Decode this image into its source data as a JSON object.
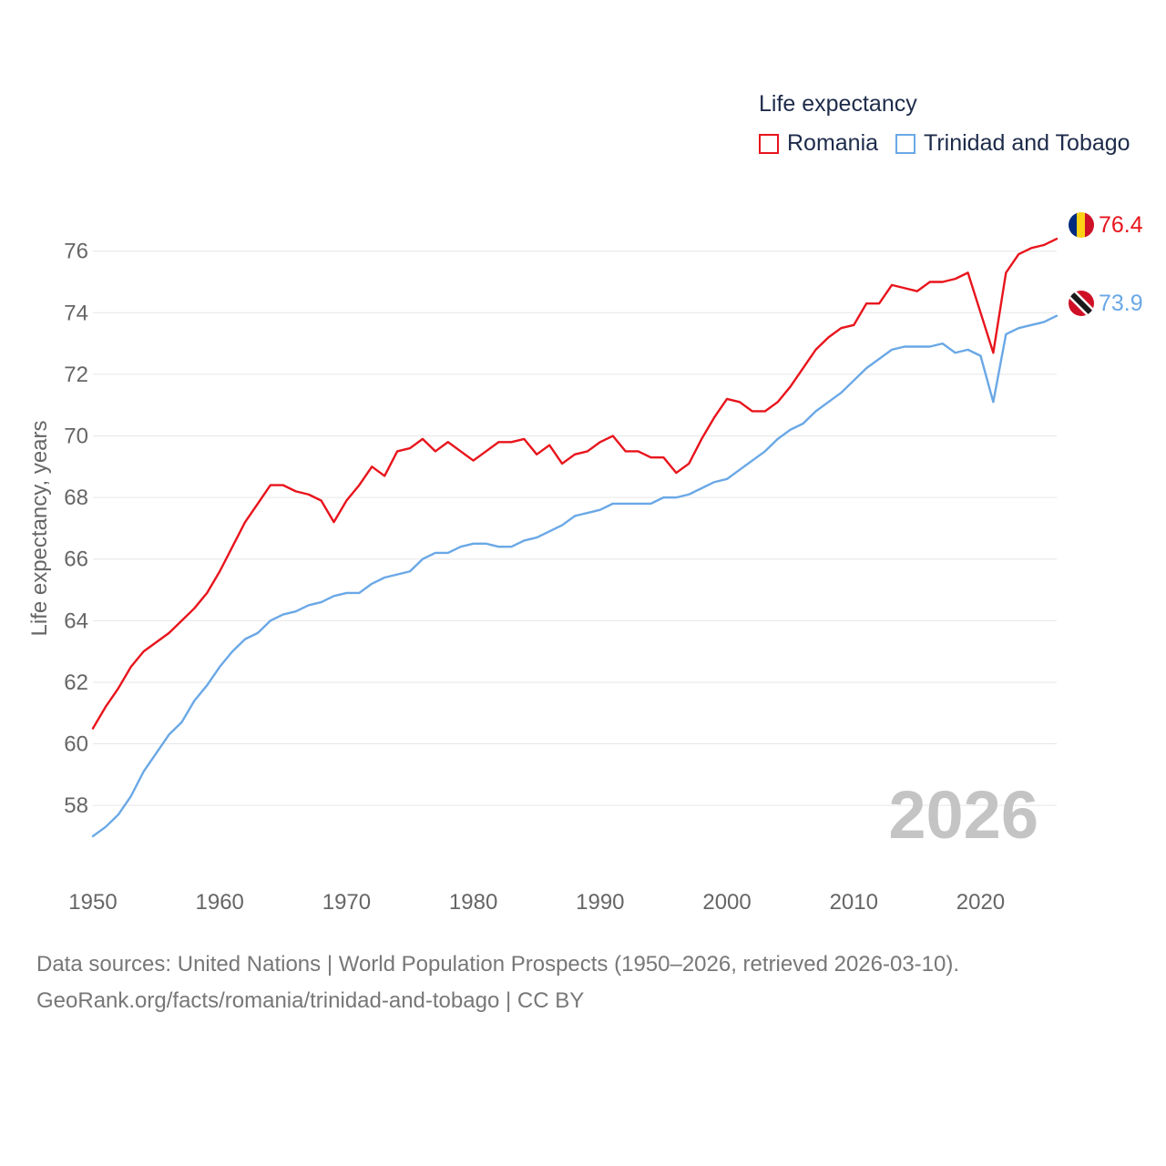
{
  "legend": {
    "title": "Life expectancy",
    "items": [
      {
        "name": "Romania",
        "color": "#e8141c"
      },
      {
        "name": "Trinidad and Tobago",
        "color": "#6aa8e6"
      }
    ]
  },
  "year_display": "2026",
  "end_labels": {
    "romania": "76.4",
    "trinidad_and_tobago": "73.9"
  },
  "flags": {
    "romania": "romania-flag-icon",
    "trinidad_and_tobago": "trinidad-and-tobago-flag-icon"
  },
  "footer": {
    "line1": "Data sources: United Nations | World Population Prospects (1950–2026, retrieved 2026-03-10).",
    "line2": "GeoRank.org/facts/romania/trinidad-and-tobago | CC BY"
  },
  "chart_data": {
    "type": "line",
    "title": "Life expectancy",
    "xlabel": "",
    "ylabel": "Life expectancy, years",
    "xlim": [
      1950,
      2026
    ],
    "ylim": [
      56.2,
      77.5
    ],
    "x_ticks": [
      1950,
      1960,
      1970,
      1980,
      1990,
      2000,
      2010,
      2020
    ],
    "y_ticks": [
      58,
      60,
      62,
      64,
      66,
      68,
      70,
      72,
      74,
      76
    ],
    "grid": true,
    "legend_position": "top-right",
    "x": [
      1950,
      1951,
      1952,
      1953,
      1954,
      1955,
      1956,
      1957,
      1958,
      1959,
      1960,
      1961,
      1962,
      1963,
      1964,
      1965,
      1966,
      1967,
      1968,
      1969,
      1970,
      1971,
      1972,
      1973,
      1974,
      1975,
      1976,
      1977,
      1978,
      1979,
      1980,
      1981,
      1982,
      1983,
      1984,
      1985,
      1986,
      1987,
      1988,
      1989,
      1990,
      1991,
      1992,
      1993,
      1994,
      1995,
      1996,
      1997,
      1998,
      1999,
      2000,
      2001,
      2002,
      2003,
      2004,
      2005,
      2006,
      2007,
      2008,
      2009,
      2010,
      2011,
      2012,
      2013,
      2014,
      2015,
      2016,
      2017,
      2018,
      2019,
      2020,
      2021,
      2022,
      2023,
      2024,
      2025,
      2026
    ],
    "series": [
      {
        "name": "Romania",
        "color": "#e8141c",
        "values": [
          60.5,
          61.2,
          61.8,
          62.5,
          63.0,
          63.3,
          63.6,
          64.0,
          64.4,
          64.9,
          65.6,
          66.4,
          67.2,
          67.8,
          68.4,
          68.4,
          68.2,
          68.1,
          67.9,
          67.2,
          67.9,
          68.4,
          69.0,
          68.7,
          69.5,
          69.6,
          69.9,
          69.5,
          69.8,
          69.5,
          69.2,
          69.5,
          69.8,
          69.8,
          69.9,
          69.4,
          69.7,
          69.1,
          69.4,
          69.5,
          69.8,
          70.0,
          69.5,
          69.5,
          69.3,
          69.3,
          68.8,
          69.1,
          69.9,
          70.6,
          71.2,
          71.1,
          70.8,
          70.8,
          71.1,
          71.6,
          72.2,
          72.8,
          73.2,
          73.5,
          73.6,
          74.3,
          74.3,
          74.9,
          74.8,
          74.7,
          75.0,
          75.0,
          75.1,
          75.3,
          74.0,
          72.7,
          75.3,
          75.9,
          76.1,
          76.2,
          76.4
        ]
      },
      {
        "name": "Trinidad and Tobago",
        "color": "#6aa8e6",
        "values": [
          57.0,
          57.3,
          57.7,
          58.3,
          59.1,
          59.7,
          60.3,
          60.7,
          61.4,
          61.9,
          62.5,
          63.0,
          63.4,
          63.6,
          64.0,
          64.2,
          64.3,
          64.5,
          64.6,
          64.8,
          64.9,
          64.9,
          65.2,
          65.4,
          65.5,
          65.6,
          66.0,
          66.2,
          66.2,
          66.4,
          66.5,
          66.5,
          66.4,
          66.4,
          66.6,
          66.7,
          66.9,
          67.1,
          67.4,
          67.5,
          67.6,
          67.8,
          67.8,
          67.8,
          67.8,
          68.0,
          68.0,
          68.1,
          68.3,
          68.5,
          68.6,
          68.9,
          69.2,
          69.5,
          69.9,
          70.2,
          70.4,
          70.8,
          71.1,
          71.4,
          71.8,
          72.2,
          72.5,
          72.8,
          72.9,
          72.9,
          72.9,
          73.0,
          72.7,
          72.8,
          72.6,
          71.1,
          73.3,
          73.5,
          73.6,
          73.7,
          73.9
        ]
      }
    ]
  }
}
